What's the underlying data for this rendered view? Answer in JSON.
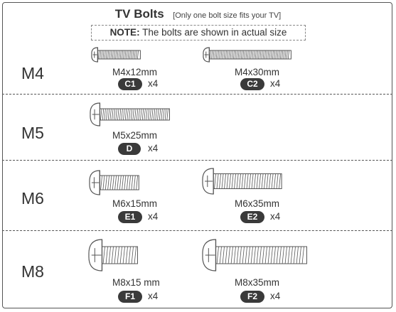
{
  "header": {
    "title": "TV Bolts",
    "subtitle": "[Only one bolt size fits your TV]",
    "note_label": "NOTE:",
    "note_text": " The bolts are shown in actual size"
  },
  "rows": [
    {
      "label": "M4",
      "bolts": [
        {
          "name": "M4x12mm",
          "code": "C1",
          "qty": "x4"
        },
        {
          "name": "M4x30mm",
          "code": "C2",
          "qty": "x4"
        }
      ]
    },
    {
      "label": "M5",
      "bolts": [
        {
          "name": "M5x25mm",
          "code": "D",
          "qty": "x4"
        }
      ]
    },
    {
      "label": "M6",
      "bolts": [
        {
          "name": "M6x15mm",
          "code": "E1",
          "qty": "x4"
        },
        {
          "name": "M6x35mm",
          "code": "E2",
          "qty": "x4"
        }
      ]
    },
    {
      "label": "M8",
      "bolts": [
        {
          "name": "M8x15 mm",
          "code": "F1",
          "qty": "x4"
        },
        {
          "name": "M8x35mm",
          "code": "F2",
          "qty": "x4"
        }
      ]
    }
  ],
  "colors": {
    "line": "#555555",
    "badge": "#3a3a3a"
  },
  "icons": [
    "phillips-bolt-icon"
  ]
}
